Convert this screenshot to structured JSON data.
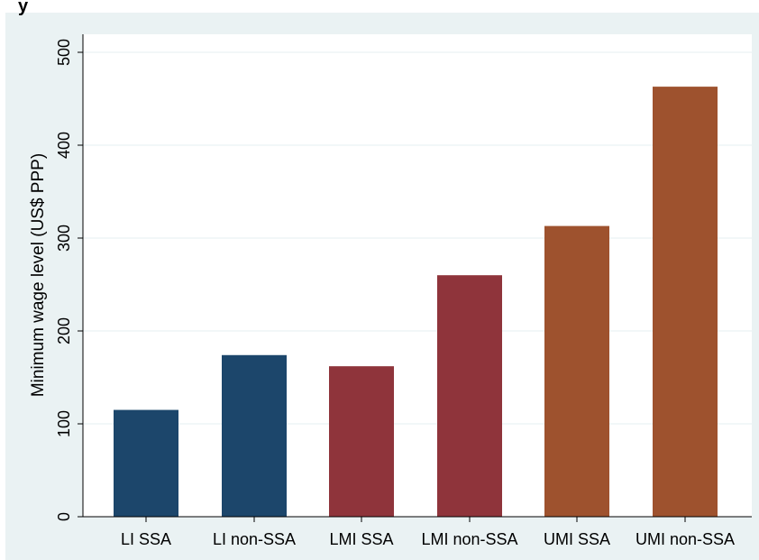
{
  "chart_data": {
    "type": "bar",
    "title": "y",
    "xlabel": "",
    "ylabel": "Minimum wage level (US$ PPP)",
    "categories": [
      "LI SSA",
      "LI non-SSA",
      "LMI SSA",
      "LMI non-SSA",
      "UMI SSA",
      "UMI non-SSA"
    ],
    "values": [
      115,
      174,
      162,
      260,
      313,
      463
    ],
    "colors": [
      "#1c466b",
      "#1c466b",
      "#8f343b",
      "#8f343b",
      "#9e522e",
      "#9e522e"
    ],
    "ylim": [
      0,
      520
    ],
    "yticks": [
      0,
      100,
      200,
      300,
      400,
      500
    ],
    "grid": true,
    "legend": "none"
  },
  "style": {
    "outer_background": "#ffffff",
    "panel_background": "#eaf2f3",
    "plot_background": "#ffffff",
    "grid_color": "#eaf2f3",
    "axis_color": "#000000"
  }
}
